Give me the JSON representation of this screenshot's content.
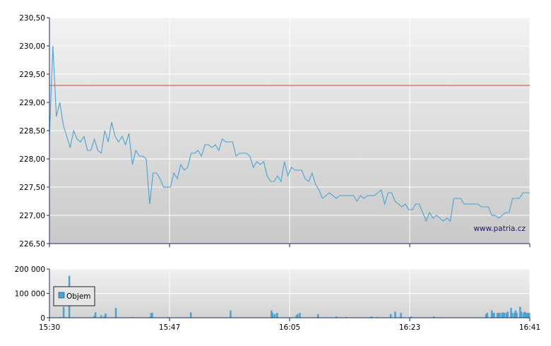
{
  "watermark": "www.patria.cz",
  "legend_label": "Objem",
  "colors": {
    "price_line": "#4aa3d0",
    "reference_line": "#d23c3c",
    "volume_bar": "#4aa3d0",
    "grid": "#ffffff"
  },
  "chart_data": [
    {
      "type": "line",
      "ylim": [
        226.5,
        230.5
      ],
      "yticks": [
        "230,50",
        "230,00",
        "229,50",
        "229,00",
        "228,50",
        "228,00",
        "227,50",
        "227,00",
        "226,50"
      ],
      "ytick_values": [
        230.5,
        230.0,
        229.5,
        229.0,
        228.5,
        228.0,
        227.5,
        227.0,
        226.5
      ],
      "xticks": [
        "15:30",
        "15:47",
        "16:05",
        "16:23",
        "16:41"
      ],
      "reference_value": 229.3,
      "series": [
        {
          "values": [
            228.4,
            230.0,
            228.75,
            229.0,
            228.6,
            228.4,
            228.2,
            228.5,
            228.35,
            228.3,
            228.4,
            228.15,
            228.15,
            228.35,
            228.15,
            228.1,
            228.5,
            228.3,
            228.65,
            228.4,
            228.3,
            228.4,
            228.25,
            228.45,
            227.9,
            228.15,
            228.05,
            228.05,
            228.0,
            227.2,
            227.75,
            227.75,
            227.65,
            227.5,
            227.5,
            227.5,
            227.75,
            227.65,
            227.9,
            227.8,
            227.85,
            228.1,
            228.1,
            228.15,
            228.05,
            228.25,
            228.25,
            228.2,
            228.25,
            228.15,
            228.35,
            228.3,
            228.3,
            228.3,
            228.05,
            228.1,
            228.1,
            228.1,
            228.05,
            227.85,
            227.95,
            227.9,
            227.95,
            227.7,
            227.6,
            227.6,
            227.7,
            227.6,
            227.95,
            227.7,
            227.85,
            227.8,
            227.8,
            227.8,
            227.65,
            227.6,
            227.75,
            227.55,
            227.45,
            227.3,
            227.35,
            227.4,
            227.35,
            227.3,
            227.35,
            227.35,
            227.35,
            227.35,
            227.35,
            227.25,
            227.35,
            227.3,
            227.35,
            227.35,
            227.35,
            227.4,
            227.45,
            227.2,
            227.4,
            227.4,
            227.25,
            227.2,
            227.15,
            227.2,
            227.1,
            227.1,
            227.2,
            227.2,
            227.05,
            226.9,
            227.05,
            226.95,
            227.0,
            226.95,
            226.9,
            226.95,
            226.9,
            227.3,
            227.3,
            227.3,
            227.2,
            227.2,
            227.2,
            227.2,
            227.2,
            227.15,
            227.15,
            227.15,
            227.0,
            227.0,
            226.95,
            227.0,
            227.05,
            227.05,
            227.3,
            227.3,
            227.3,
            227.4,
            227.4,
            227.4
          ]
        }
      ]
    },
    {
      "type": "bar",
      "ylim": [
        0,
        200000
      ],
      "yticks": [
        "200 000",
        "100 000",
        "0"
      ],
      "ytick_values": [
        200000,
        100000,
        0
      ],
      "xticks": [
        "15:30",
        "15:47",
        "16:05",
        "16:23",
        "16:41"
      ],
      "series": [
        {
          "name": "Objem",
          "values": [
            0,
            2000,
            0,
            0,
            1000,
            0,
            0,
            0,
            0,
            3000,
            0,
            0,
            45000,
            2000,
            0,
            0,
            0,
            172000,
            0,
            0,
            0,
            2000,
            0,
            0,
            0,
            0,
            0,
            0,
            0,
            0,
            0,
            0,
            0,
            0,
            0,
            0,
            2000,
            0,
            0,
            8000,
            22000,
            0,
            0,
            0,
            0,
            10000,
            0,
            0,
            7000,
            17000,
            0,
            0,
            0,
            0,
            0,
            0,
            0,
            0,
            40000,
            0,
            0,
            0,
            0,
            0,
            0,
            0,
            0,
            0,
            0,
            0,
            0,
            0,
            0,
            3000,
            0,
            0,
            0,
            0,
            0,
            0,
            0,
            0,
            0,
            0,
            0,
            0,
            0,
            0,
            3000,
            20000,
            20000,
            0,
            0,
            0,
            0,
            0,
            0,
            0,
            0,
            0,
            2000,
            0,
            0,
            0,
            3000,
            0,
            0,
            0,
            0,
            0,
            0,
            0,
            0,
            0,
            0,
            0,
            0,
            0,
            0,
            0,
            0,
            0,
            0,
            0,
            22000,
            0,
            0,
            0,
            0,
            0,
            0,
            0,
            0,
            2000,
            0,
            0,
            0,
            0,
            0,
            0,
            0,
            0,
            0,
            0,
            0,
            0,
            0,
            0,
            0,
            2000,
            0,
            0,
            0,
            0,
            0,
            0,
            0,
            0,
            0,
            30000,
            0,
            0,
            0,
            0,
            0,
            0,
            0,
            0,
            0,
            0,
            0,
            0,
            0,
            0,
            0,
            0,
            0,
            0,
            0,
            0,
            0,
            0,
            0,
            0,
            0,
            0,
            0,
            0,
            0,
            0,
            0,
            0,
            0,
            0,
            0,
            30000,
            20000,
            0,
            15000,
            0,
            20000,
            0,
            0,
            0,
            0,
            0,
            0,
            0,
            0,
            0,
            0,
            0,
            0,
            0,
            0,
            0,
            0,
            10000,
            15000,
            0,
            20000,
            0,
            0,
            0,
            0,
            0,
            0,
            0,
            0,
            0,
            0,
            0,
            0,
            0,
            0,
            0,
            15000,
            0,
            0,
            0,
            0,
            0,
            0,
            0,
            0,
            0,
            0,
            0,
            0,
            0,
            0,
            0,
            5000,
            0,
            0,
            0,
            0,
            0,
            0,
            0,
            0,
            3000,
            0,
            0,
            0,
            0,
            0,
            0,
            0,
            0,
            0,
            0,
            0,
            0,
            0,
            0,
            0,
            0,
            0,
            0,
            0,
            0,
            0,
            5000,
            0,
            0,
            0,
            0,
            3000,
            0,
            0,
            0,
            0,
            0,
            0,
            0,
            0,
            0,
            0,
            0,
            15000,
            0,
            0,
            0,
            25000,
            0,
            0,
            0,
            0,
            20000,
            0,
            0,
            0,
            0,
            0,
            0,
            0,
            0,
            5000,
            0,
            0,
            0,
            0,
            0,
            0,
            0,
            0,
            0,
            0,
            0,
            0,
            0,
            0,
            0,
            0,
            0,
            0,
            0,
            5000,
            0,
            0,
            0,
            0,
            0,
            0,
            2000,
            0,
            0,
            0,
            0,
            0,
            0,
            0,
            0,
            0,
            0,
            0,
            0,
            0,
            0,
            0,
            0,
            0,
            0,
            0,
            0,
            0,
            0,
            0,
            0,
            0,
            2000,
            0,
            0,
            0,
            0,
            0,
            0,
            0,
            0,
            0,
            0,
            0,
            0,
            15000,
            20000,
            0,
            0,
            0,
            30000,
            20000,
            20000,
            0,
            0,
            20000,
            20000,
            20000,
            0,
            20000,
            22000,
            20000,
            0,
            20000,
            25000,
            0,
            0,
            40000,
            20000,
            0,
            20000,
            30000,
            20000,
            0,
            0,
            45000,
            25000,
            0,
            20000,
            25000,
            20000,
            20000,
            20000,
            20000
          ]
        }
      ]
    }
  ]
}
